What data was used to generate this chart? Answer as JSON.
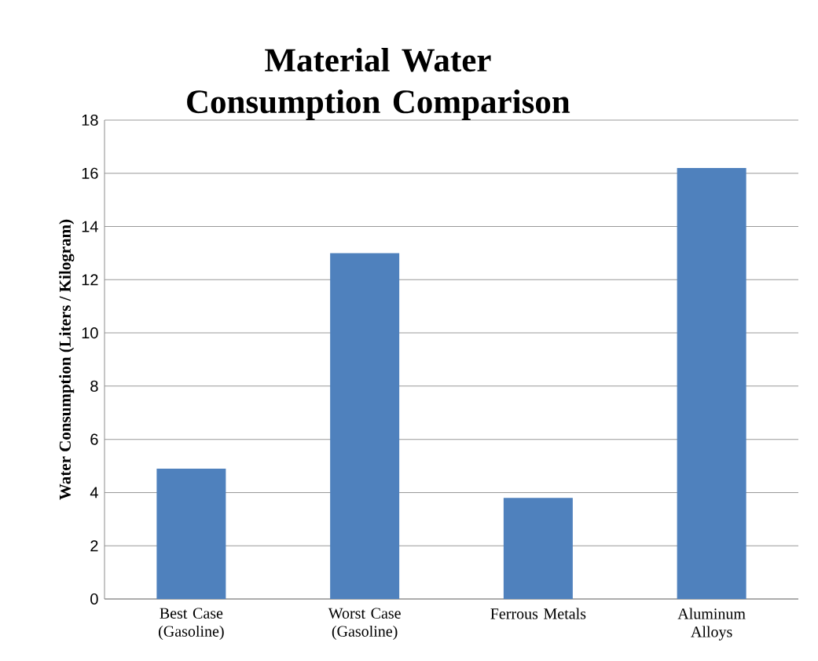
{
  "chart_data": {
    "type": "bar",
    "title": "Material Water Consumption Comparison",
    "ylabel": "Water Consumption (Liters / Kilogram)",
    "categories": [
      "Best Case (Gasoline)",
      "Worst Case (Gasoline)",
      "Ferrous Metals",
      "Aluminum Alloys"
    ],
    "values": [
      4.9,
      13,
      3.8,
      16.2
    ],
    "color": "#4f81bd",
    "ylim": [
      0,
      18
    ],
    "yticks": [
      0,
      2,
      4,
      6,
      8,
      10,
      12,
      14,
      16,
      18
    ],
    "grid": "y"
  }
}
